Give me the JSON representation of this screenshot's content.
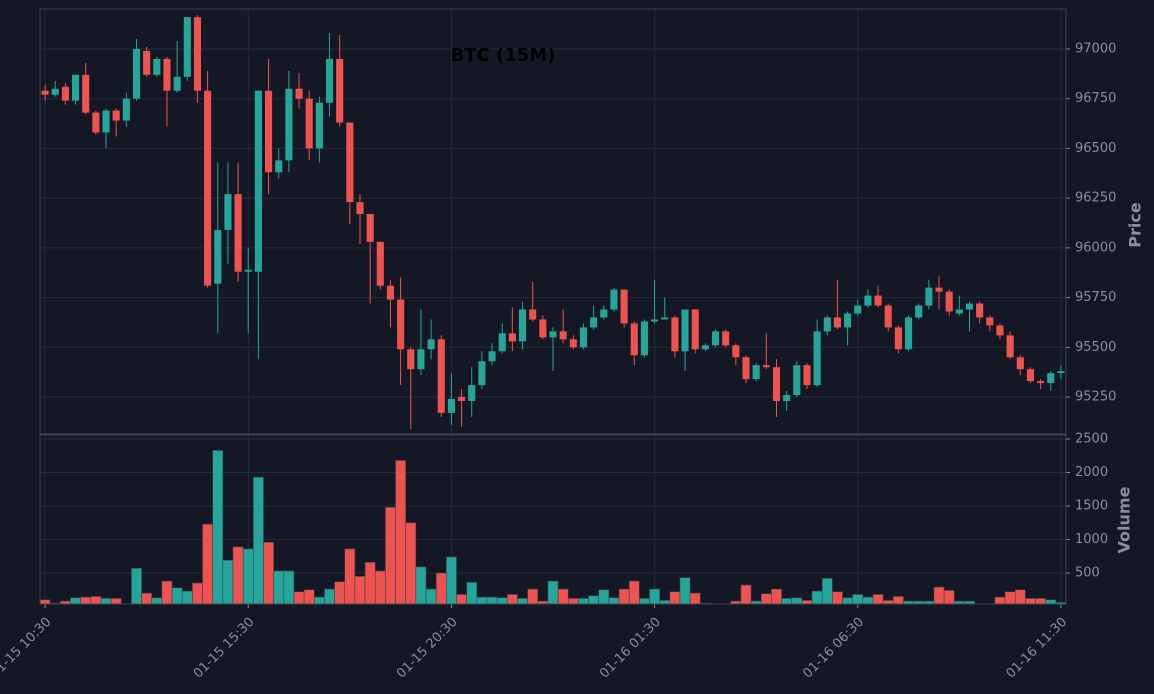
{
  "chart_data": {
    "type": "candlestick",
    "title": "BTC (15M)",
    "ylabel": "Price",
    "volume_label": "Volume",
    "categories": [
      "01-15 10:30",
      null,
      null,
      null,
      null,
      null,
      null,
      null,
      null,
      null,
      null,
      null,
      null,
      null,
      null,
      null,
      null,
      null,
      null,
      null,
      "01-15 15:30",
      null,
      null,
      null,
      null,
      null,
      null,
      null,
      null,
      null,
      null,
      null,
      null,
      null,
      null,
      null,
      null,
      null,
      null,
      null,
      "01-15 20:30",
      null,
      null,
      null,
      null,
      null,
      null,
      null,
      null,
      null,
      null,
      null,
      null,
      null,
      null,
      null,
      null,
      null,
      null,
      null,
      "01-16 01:30",
      null,
      null,
      null,
      null,
      null,
      null,
      null,
      null,
      null,
      null,
      null,
      null,
      null,
      null,
      null,
      null,
      null,
      null,
      null,
      "01-16 06:30",
      null,
      null,
      null,
      null,
      null,
      null,
      null,
      null,
      null,
      null,
      null,
      null,
      null,
      null,
      null,
      null,
      null,
      null,
      null,
      "01-16 11:30"
    ],
    "open": [
      96790,
      96770,
      96810,
      96740,
      96870,
      96680,
      96580,
      96690,
      96640,
      96750,
      96990,
      96870,
      96950,
      96790,
      96860,
      97160,
      96790,
      95820,
      96090,
      96270,
      95880,
      95880,
      96790,
      96380,
      96440,
      96800,
      96750,
      96500,
      96730,
      96950,
      96630,
      96230,
      96170,
      96030,
      95810,
      95740,
      95490,
      95390,
      95490,
      95540,
      95170,
      95250,
      95230,
      95310,
      95430,
      95480,
      95570,
      95530,
      95690,
      95640,
      95550,
      95580,
      95540,
      95500,
      95600,
      95650,
      95690,
      95790,
      95620,
      95460,
      95630,
      95640,
      95650,
      95480,
      95690,
      95490,
      95510,
      95580,
      95510,
      95450,
      95340,
      95410,
      95400,
      95230,
      95260,
      95410,
      95310,
      95580,
      95650,
      95600,
      95670,
      95710,
      95760,
      95710,
      95600,
      95490,
      95650,
      95710,
      95800,
      95780,
      95670,
      95690,
      95720,
      95650,
      95610,
      95560,
      95450,
      95390,
      95330,
      95320,
      95370
    ],
    "high": [
      96820,
      96840,
      96830,
      96870,
      96930,
      96690,
      96700,
      96700,
      96780,
      97050,
      97010,
      96960,
      96960,
      97040,
      97160,
      97170,
      96890,
      96430,
      96430,
      96430,
      96000,
      96790,
      96950,
      96500,
      96890,
      96880,
      96790,
      96760,
      97080,
      97070,
      96630,
      96270,
      96170,
      96030,
      95840,
      95850,
      95500,
      95690,
      95640,
      95560,
      95370,
      95290,
      95400,
      95480,
      95520,
      95620,
      95700,
      95730,
      95830,
      95660,
      95600,
      95690,
      95560,
      95620,
      95710,
      95710,
      95800,
      95790,
      95630,
      95640,
      95840,
      95750,
      95660,
      95690,
      95690,
      95520,
      95590,
      95590,
      95520,
      95460,
      95420,
      95570,
      95440,
      95280,
      95430,
      95420,
      95640,
      95660,
      95840,
      95680,
      95740,
      95790,
      95810,
      95720,
      95610,
      95660,
      95720,
      95840,
      95860,
      95790,
      95760,
      95730,
      95730,
      95660,
      95620,
      95580,
      95460,
      95400,
      95340,
      95380,
      95410
    ],
    "low": [
      96740,
      96760,
      96720,
      96720,
      96670,
      96570,
      96500,
      96560,
      96610,
      96740,
      96860,
      96860,
      96610,
      96780,
      96840,
      96730,
      95800,
      95570,
      95920,
      95830,
      95570,
      95440,
      96270,
      96350,
      96380,
      96700,
      96440,
      96430,
      96660,
      96610,
      96120,
      96020,
      95720,
      95790,
      95600,
      95310,
      95090,
      95360,
      95440,
      95150,
      95110,
      95100,
      95150,
      95290,
      95410,
      95470,
      95480,
      95490,
      95630,
      95540,
      95380,
      95520,
      95490,
      95490,
      95590,
      95640,
      95680,
      95600,
      95410,
      95450,
      95620,
      95640,
      95450,
      95380,
      95470,
      95480,
      95500,
      95500,
      95410,
      95320,
      95330,
      95390,
      95150,
      95180,
      95250,
      95290,
      95300,
      95560,
      95590,
      95510,
      95660,
      95700,
      95700,
      95580,
      95470,
      95480,
      95640,
      95690,
      95690,
      95660,
      95660,
      95580,
      95620,
      95580,
      95540,
      95440,
      95360,
      95320,
      95290,
      95280,
      95340
    ],
    "close": [
      96770,
      96800,
      96740,
      96870,
      96680,
      96580,
      96690,
      96640,
      96750,
      97000,
      96870,
      96950,
      96790,
      96860,
      97160,
      96790,
      95810,
      96090,
      96270,
      95880,
      95890,
      96790,
      96380,
      96440,
      96800,
      96750,
      96500,
      96730,
      96950,
      96630,
      96230,
      96170,
      96030,
      95810,
      95740,
      95490,
      95390,
      95490,
      95540,
      95170,
      95240,
      95230,
      95310,
      95430,
      95480,
      95570,
      95530,
      95690,
      95640,
      95550,
      95580,
      95540,
      95500,
      95600,
      95650,
      95690,
      95790,
      95620,
      95460,
      95630,
      95640,
      95650,
      95480,
      95690,
      95490,
      95510,
      95580,
      95510,
      95450,
      95340,
      95410,
      95400,
      95230,
      95260,
      95410,
      95310,
      95580,
      95650,
      95600,
      95670,
      95710,
      95760,
      95710,
      95600,
      95490,
      95650,
      95710,
      95800,
      95780,
      95680,
      95690,
      95720,
      95650,
      95610,
      95560,
      95450,
      95390,
      95330,
      95320,
      95370,
      95380
    ],
    "volume": [
      100,
      50,
      80,
      130,
      140,
      150,
      120,
      120,
      40,
      570,
      200,
      130,
      380,
      280,
      230,
      350,
      1230,
      2330,
      690,
      890,
      860,
      1930,
      960,
      530,
      530,
      220,
      250,
      140,
      260,
      370,
      860,
      450,
      660,
      530,
      1480,
      2180,
      1250,
      590,
      260,
      500,
      740,
      180,
      360,
      140,
      140,
      130,
      180,
      120,
      260,
      80,
      380,
      260,
      120,
      120,
      160,
      250,
      130,
      260,
      380,
      120,
      260,
      90,
      220,
      430,
      200,
      50,
      40,
      40,
      80,
      320,
      80,
      190,
      260,
      120,
      130,
      90,
      230,
      420,
      220,
      130,
      180,
      140,
      180,
      90,
      150,
      80,
      80,
      80,
      290,
      240,
      80,
      80,
      40,
      40,
      140,
      220,
      250,
      120,
      120,
      100,
      60
    ],
    "up_color": "#26a69a",
    "down_color": "#ef5350",
    "ylim": [
      95064,
      97201
    ],
    "yticks": [
      95250,
      95500,
      95750,
      96000,
      96250,
      96500,
      96750,
      97000
    ],
    "volume_ylim": [
      37,
      2560
    ],
    "volume_yticks": [
      500,
      1000,
      1500,
      2000,
      2500
    ],
    "grid": true
  }
}
